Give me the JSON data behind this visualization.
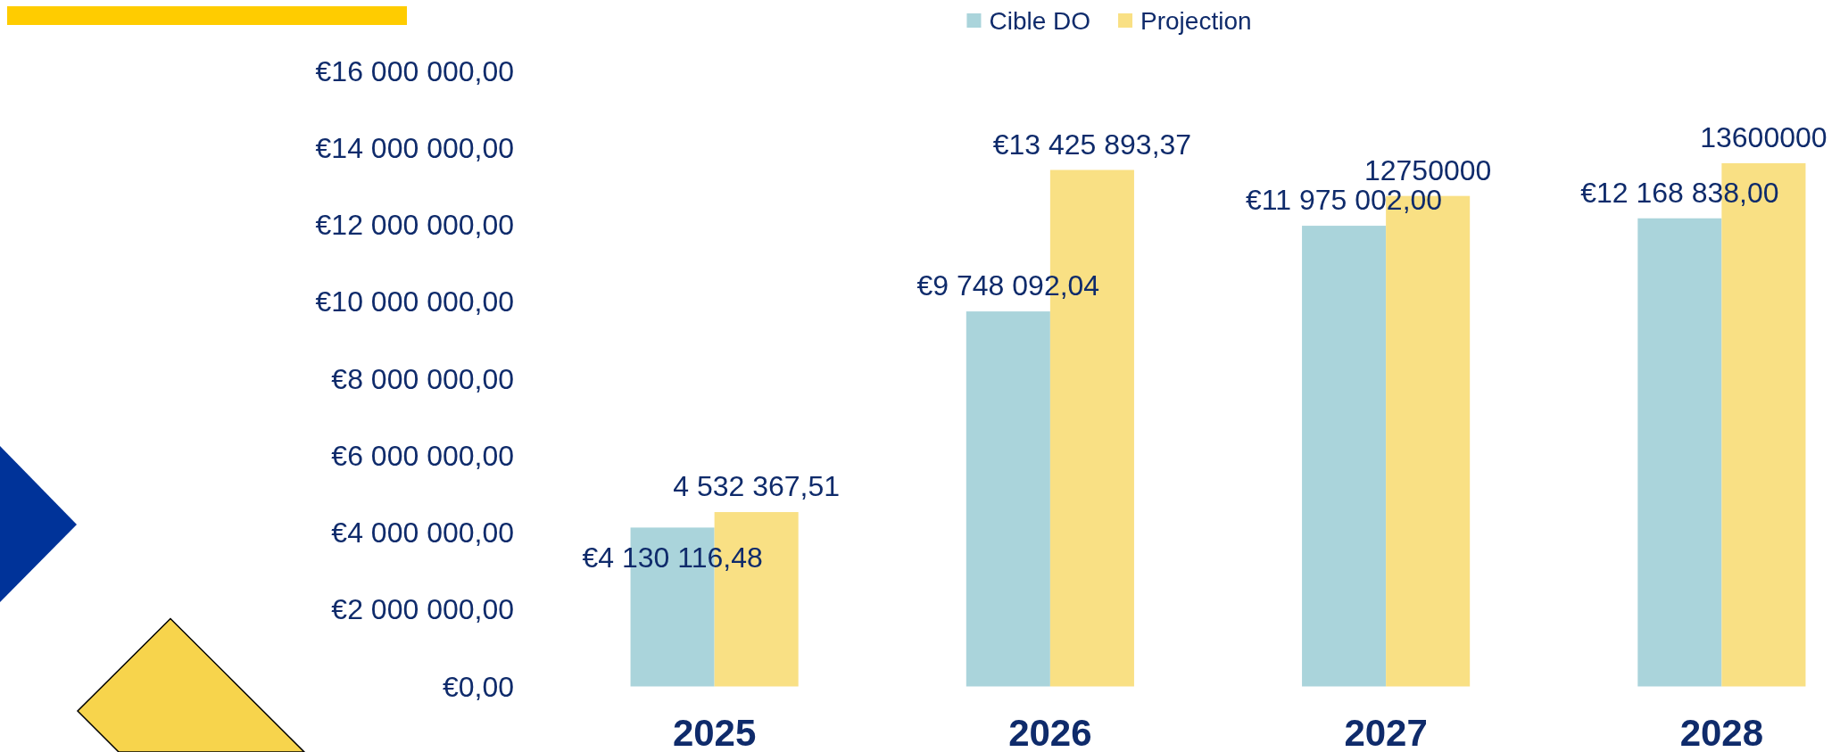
{
  "chart_data": {
    "type": "bar",
    "categories": [
      "2025",
      "2026",
      "2027",
      "2028"
    ],
    "series": [
      {
        "name": "Cible DO",
        "color": "#aad4db",
        "values": [
          4130116.48,
          9748092.04,
          11975002.0,
          12168838.0
        ],
        "value_labels": [
          "€4 130 116,48",
          "€9 748 092,04",
          "€11 975 002,00",
          "€12 168 838,00"
        ]
      },
      {
        "name": "Projection",
        "color": "#f9e084",
        "values": [
          4532367.51,
          13425893.37,
          12750000,
          13600000
        ],
        "value_labels": [
          "4 532 367,51",
          "€13 425 893,37",
          "12750000",
          "13600000"
        ]
      }
    ],
    "ylim": [
      0,
      16000000
    ],
    "yticks": [
      {
        "value": 0,
        "label": "€0,00"
      },
      {
        "value": 2000000,
        "label": "€2 000 000,00"
      },
      {
        "value": 4000000,
        "label": "€4 000 000,00"
      },
      {
        "value": 6000000,
        "label": "€6 000 000,00"
      },
      {
        "value": 8000000,
        "label": "€8 000 000,00"
      },
      {
        "value": 10000000,
        "label": "€10 000 000,00"
      },
      {
        "value": 12000000,
        "label": "€12 000 000,00"
      },
      {
        "value": 14000000,
        "label": "€14 000 000,00"
      },
      {
        "value": 16000000,
        "label": "€16 000 000,00"
      }
    ],
    "legend": "top"
  }
}
